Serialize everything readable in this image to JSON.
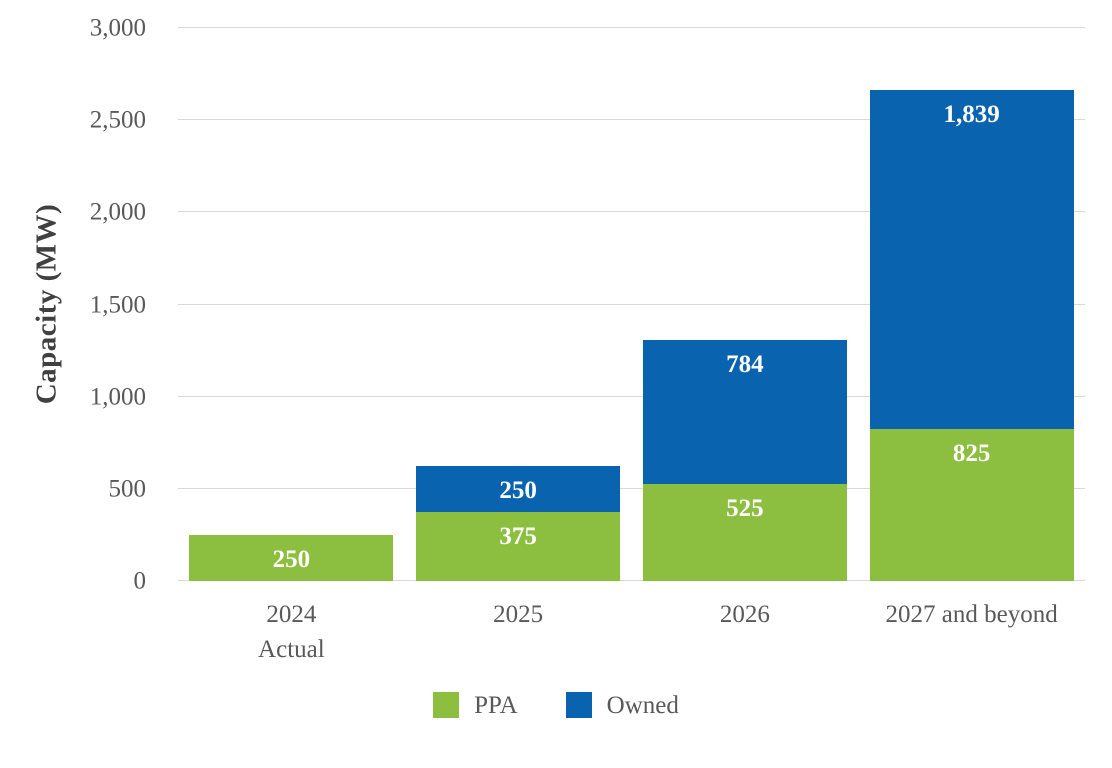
{
  "chart_data": {
    "type": "bar",
    "stacked": true,
    "title": "",
    "ylabel": "Capacity (MW)",
    "ylim": [
      0,
      3000
    ],
    "ytick_interval": 500,
    "yticks": [
      {
        "value": 0,
        "label": "0"
      },
      {
        "value": 500,
        "label": "500"
      },
      {
        "value": 1000,
        "label": "1,000"
      },
      {
        "value": 1500,
        "label": "1,500"
      },
      {
        "value": 2000,
        "label": "2,000"
      },
      {
        "value": 2500,
        "label": "2,500"
      },
      {
        "value": 3000,
        "label": "3,000"
      }
    ],
    "categories": [
      {
        "label": "2024\nActual"
      },
      {
        "label": "2025"
      },
      {
        "label": "2026"
      },
      {
        "label": "2027 and beyond"
      }
    ],
    "series": [
      {
        "name": "PPA",
        "color": "#8CBE3F",
        "values": [
          250,
          375,
          525,
          825
        ],
        "labels": [
          "250",
          "375",
          "525",
          "825"
        ]
      },
      {
        "name": "Owned",
        "color": "#0A63AF",
        "values": [
          0,
          250,
          784,
          1839
        ],
        "labels": [
          "",
          "250",
          "784",
          "1,839"
        ]
      }
    ],
    "totals": [
      250,
      625,
      1309,
      2664
    ],
    "legend": {
      "position": "bottom",
      "entries": [
        "PPA",
        "Owned"
      ]
    },
    "grid": true
  },
  "colors": {
    "ppa_green": "#8CBE3F",
    "owned_blue": "#0A63AF",
    "gridline": "#D9D9D9",
    "axis_text": "#595959",
    "axis_title_text": "#404040",
    "bar_label_text": "#FFFFFF",
    "background": "#FFFFFF"
  }
}
